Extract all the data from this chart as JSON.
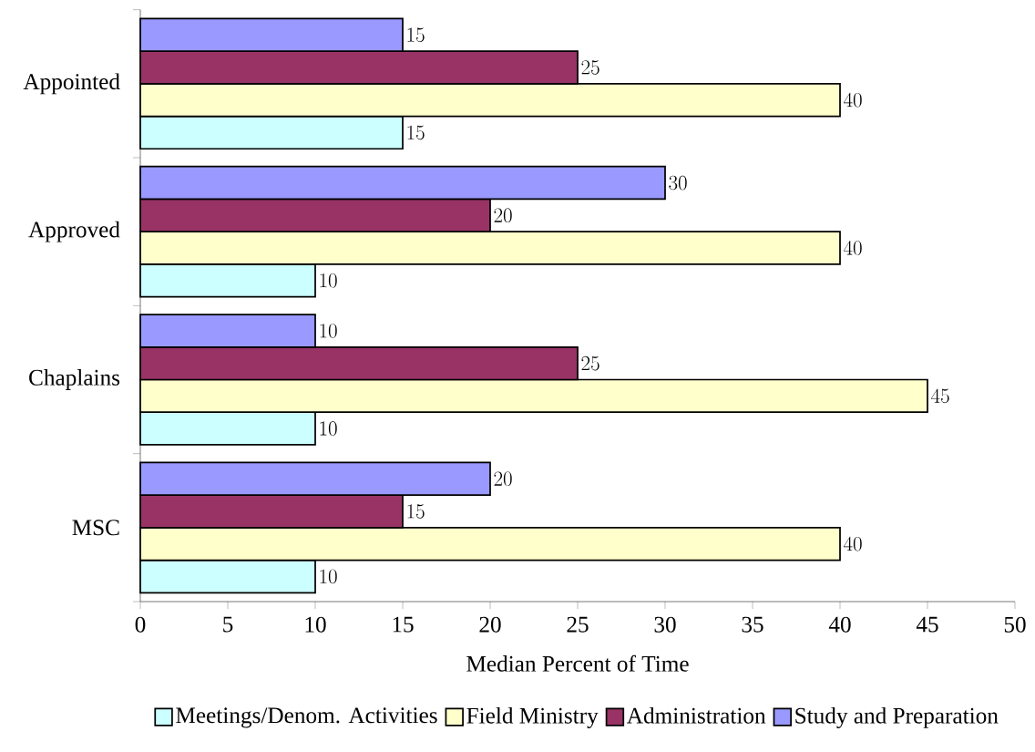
{
  "chart_data": {
    "type": "bar",
    "orientation": "horizontal",
    "xlabel": "Median Percent of Time",
    "categories": [
      "Appointed",
      "Approved",
      "Chaplains",
      "MSC"
    ],
    "series": [
      {
        "name": "Meetings/Denom. Activities",
        "color": "#ccffff",
        "values": [
          15,
          10,
          10,
          10
        ]
      },
      {
        "name": "Field Ministry",
        "color": "#ffffcc",
        "values": [
          40,
          40,
          45,
          40
        ]
      },
      {
        "name": "Administration",
        "color": "#993366",
        "values": [
          25,
          20,
          25,
          15
        ]
      },
      {
        "name": "Study and Preparation",
        "color": "#9999ff",
        "values": [
          15,
          30,
          10,
          20
        ]
      }
    ],
    "xlim": [
      0,
      50
    ],
    "xticks": [
      0,
      5,
      10,
      15,
      20,
      25,
      30,
      35,
      40,
      45,
      50
    ],
    "data_labels": true,
    "legend": "bottom"
  }
}
